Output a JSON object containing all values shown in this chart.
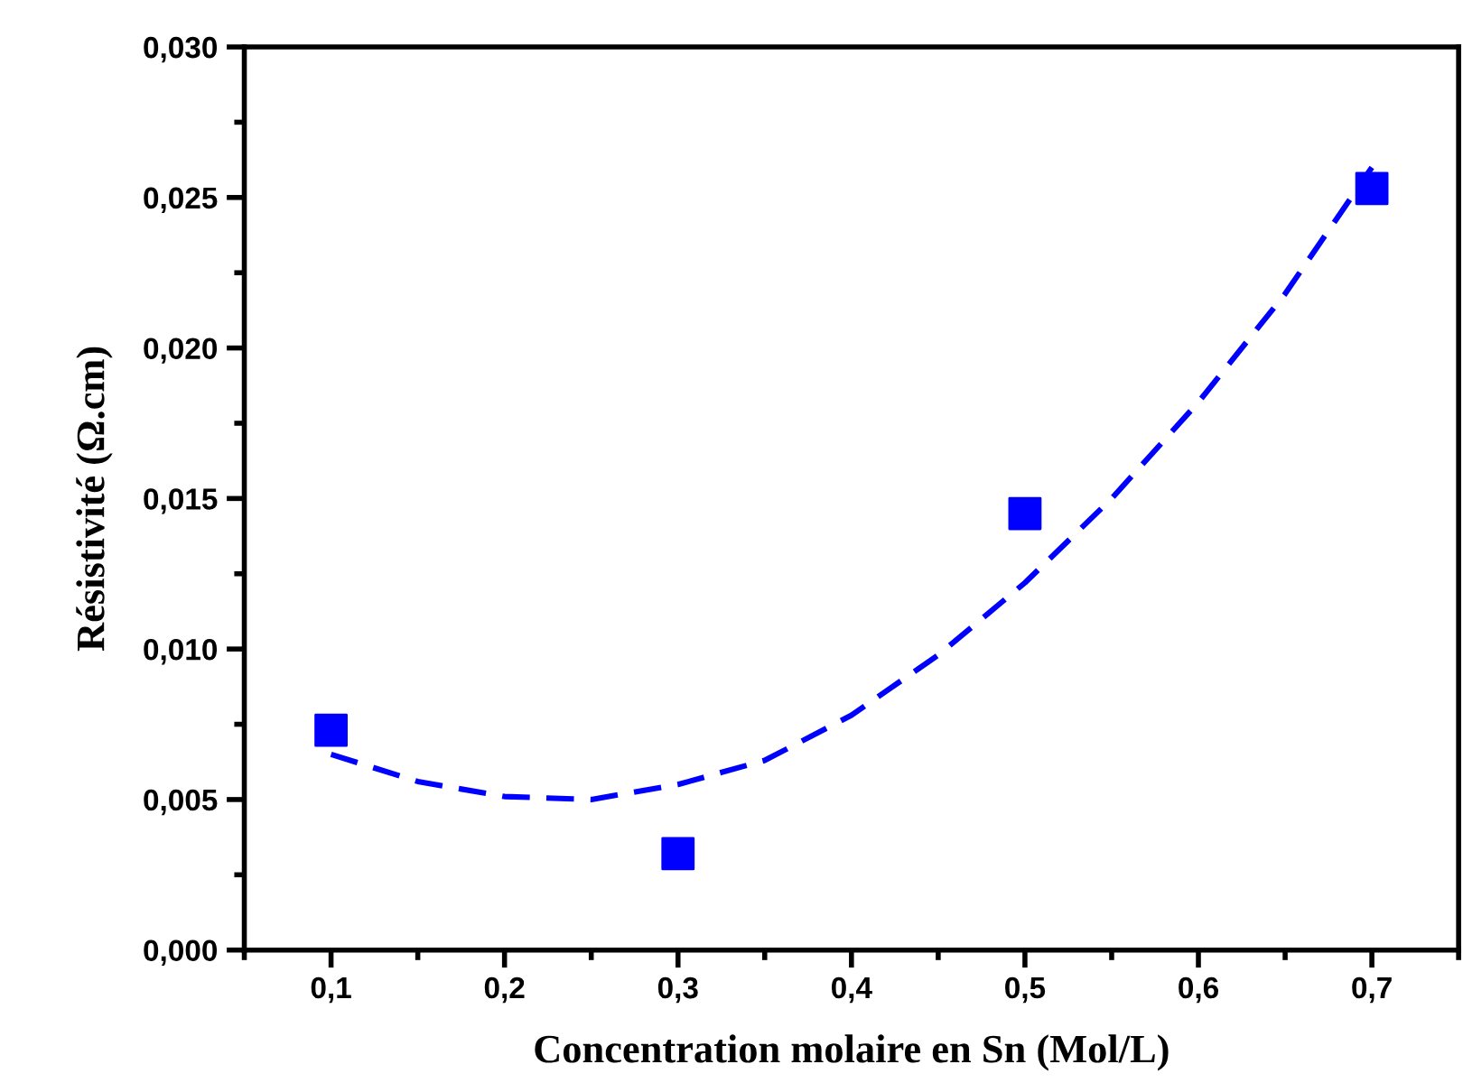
{
  "chart_data": {
    "type": "scatter",
    "xlabel": "Concentration molaire en Sn (Mol/L)",
    "ylabel": "Résistivité (Ω.cm)",
    "xlim": [
      0.05,
      0.75
    ],
    "ylim": [
      0,
      0.03
    ],
    "xticks": [
      {
        "value": 0.1,
        "label": "0,1"
      },
      {
        "value": 0.2,
        "label": "0,2"
      },
      {
        "value": 0.3,
        "label": "0,3"
      },
      {
        "value": 0.4,
        "label": "0,4"
      },
      {
        "value": 0.5,
        "label": "0,5"
      },
      {
        "value": 0.6,
        "label": "0,6"
      },
      {
        "value": 0.7,
        "label": "0,7"
      }
    ],
    "yticks": [
      {
        "value": 0,
        "label": "0,000"
      },
      {
        "value": 0.005,
        "label": "0,005"
      },
      {
        "value": 0.01,
        "label": "0,010"
      },
      {
        "value": 0.015,
        "label": "0,015"
      },
      {
        "value": 0.02,
        "label": "0,020"
      },
      {
        "value": 0.025,
        "label": "0,025"
      },
      {
        "value": 0.03,
        "label": "0,030"
      }
    ],
    "grid": false,
    "legend": false,
    "series": [
      {
        "color": "#0000ff",
        "marker": "square",
        "x": [
          0.1,
          0.3,
          0.5,
          0.7
        ],
        "values": [
          0.0073,
          0.0032,
          0.0145,
          0.0253
        ]
      },
      {
        "type": "line",
        "color": "#0000ff",
        "line_style": "dashed",
        "marker": "none",
        "x": [
          0.1,
          0.15,
          0.2,
          0.25,
          0.3,
          0.35,
          0.4,
          0.45,
          0.5,
          0.55,
          0.6,
          0.65,
          0.7
        ],
        "values": [
          0.0065,
          0.0056,
          0.0051,
          0.005,
          0.0055,
          0.0063,
          0.0078,
          0.0098,
          0.0122,
          0.015,
          0.0182,
          0.0218,
          0.026
        ]
      }
    ]
  }
}
